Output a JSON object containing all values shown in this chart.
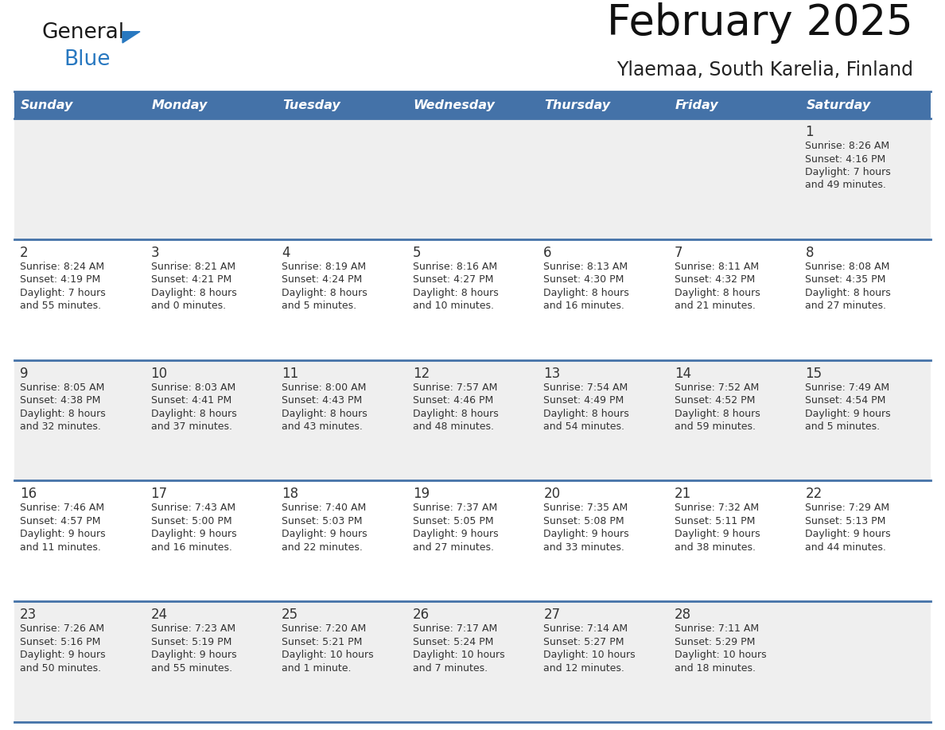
{
  "title": "February 2025",
  "subtitle": "Ylaemaa, South Karelia, Finland",
  "header_color": "#4472a8",
  "header_text_color": "#ffffff",
  "cell_bg_odd": "#efefef",
  "cell_bg_even": "#ffffff",
  "day_names": [
    "Sunday",
    "Monday",
    "Tuesday",
    "Wednesday",
    "Thursday",
    "Friday",
    "Saturday"
  ],
  "border_color": "#4472a8",
  "text_color": "#333333",
  "num_color": "#333333",
  "days": [
    {
      "day": 1,
      "col": 6,
      "row": 0,
      "sunrise": "8:26 AM",
      "sunset": "4:16 PM",
      "daylight_h": "7 hours",
      "daylight_m": "and 49 minutes."
    },
    {
      "day": 2,
      "col": 0,
      "row": 1,
      "sunrise": "8:24 AM",
      "sunset": "4:19 PM",
      "daylight_h": "7 hours",
      "daylight_m": "and 55 minutes."
    },
    {
      "day": 3,
      "col": 1,
      "row": 1,
      "sunrise": "8:21 AM",
      "sunset": "4:21 PM",
      "daylight_h": "8 hours",
      "daylight_m": "and 0 minutes."
    },
    {
      "day": 4,
      "col": 2,
      "row": 1,
      "sunrise": "8:19 AM",
      "sunset": "4:24 PM",
      "daylight_h": "8 hours",
      "daylight_m": "and 5 minutes."
    },
    {
      "day": 5,
      "col": 3,
      "row": 1,
      "sunrise": "8:16 AM",
      "sunset": "4:27 PM",
      "daylight_h": "8 hours",
      "daylight_m": "and 10 minutes."
    },
    {
      "day": 6,
      "col": 4,
      "row": 1,
      "sunrise": "8:13 AM",
      "sunset": "4:30 PM",
      "daylight_h": "8 hours",
      "daylight_m": "and 16 minutes."
    },
    {
      "day": 7,
      "col": 5,
      "row": 1,
      "sunrise": "8:11 AM",
      "sunset": "4:32 PM",
      "daylight_h": "8 hours",
      "daylight_m": "and 21 minutes."
    },
    {
      "day": 8,
      "col": 6,
      "row": 1,
      "sunrise": "8:08 AM",
      "sunset": "4:35 PM",
      "daylight_h": "8 hours",
      "daylight_m": "and 27 minutes."
    },
    {
      "day": 9,
      "col": 0,
      "row": 2,
      "sunrise": "8:05 AM",
      "sunset": "4:38 PM",
      "daylight_h": "8 hours",
      "daylight_m": "and 32 minutes."
    },
    {
      "day": 10,
      "col": 1,
      "row": 2,
      "sunrise": "8:03 AM",
      "sunset": "4:41 PM",
      "daylight_h": "8 hours",
      "daylight_m": "and 37 minutes."
    },
    {
      "day": 11,
      "col": 2,
      "row": 2,
      "sunrise": "8:00 AM",
      "sunset": "4:43 PM",
      "daylight_h": "8 hours",
      "daylight_m": "and 43 minutes."
    },
    {
      "day": 12,
      "col": 3,
      "row": 2,
      "sunrise": "7:57 AM",
      "sunset": "4:46 PM",
      "daylight_h": "8 hours",
      "daylight_m": "and 48 minutes."
    },
    {
      "day": 13,
      "col": 4,
      "row": 2,
      "sunrise": "7:54 AM",
      "sunset": "4:49 PM",
      "daylight_h": "8 hours",
      "daylight_m": "and 54 minutes."
    },
    {
      "day": 14,
      "col": 5,
      "row": 2,
      "sunrise": "7:52 AM",
      "sunset": "4:52 PM",
      "daylight_h": "8 hours",
      "daylight_m": "and 59 minutes."
    },
    {
      "day": 15,
      "col": 6,
      "row": 2,
      "sunrise": "7:49 AM",
      "sunset": "4:54 PM",
      "daylight_h": "9 hours",
      "daylight_m": "and 5 minutes."
    },
    {
      "day": 16,
      "col": 0,
      "row": 3,
      "sunrise": "7:46 AM",
      "sunset": "4:57 PM",
      "daylight_h": "9 hours",
      "daylight_m": "and 11 minutes."
    },
    {
      "day": 17,
      "col": 1,
      "row": 3,
      "sunrise": "7:43 AM",
      "sunset": "5:00 PM",
      "daylight_h": "9 hours",
      "daylight_m": "and 16 minutes."
    },
    {
      "day": 18,
      "col": 2,
      "row": 3,
      "sunrise": "7:40 AM",
      "sunset": "5:03 PM",
      "daylight_h": "9 hours",
      "daylight_m": "and 22 minutes."
    },
    {
      "day": 19,
      "col": 3,
      "row": 3,
      "sunrise": "7:37 AM",
      "sunset": "5:05 PM",
      "daylight_h": "9 hours",
      "daylight_m": "and 27 minutes."
    },
    {
      "day": 20,
      "col": 4,
      "row": 3,
      "sunrise": "7:35 AM",
      "sunset": "5:08 PM",
      "daylight_h": "9 hours",
      "daylight_m": "and 33 minutes."
    },
    {
      "day": 21,
      "col": 5,
      "row": 3,
      "sunrise": "7:32 AM",
      "sunset": "5:11 PM",
      "daylight_h": "9 hours",
      "daylight_m": "and 38 minutes."
    },
    {
      "day": 22,
      "col": 6,
      "row": 3,
      "sunrise": "7:29 AM",
      "sunset": "5:13 PM",
      "daylight_h": "9 hours",
      "daylight_m": "and 44 minutes."
    },
    {
      "day": 23,
      "col": 0,
      "row": 4,
      "sunrise": "7:26 AM",
      "sunset": "5:16 PM",
      "daylight_h": "9 hours",
      "daylight_m": "and 50 minutes."
    },
    {
      "day": 24,
      "col": 1,
      "row": 4,
      "sunrise": "7:23 AM",
      "sunset": "5:19 PM",
      "daylight_h": "9 hours",
      "daylight_m": "and 55 minutes."
    },
    {
      "day": 25,
      "col": 2,
      "row": 4,
      "sunrise": "7:20 AM",
      "sunset": "5:21 PM",
      "daylight_h": "10 hours",
      "daylight_m": "and 1 minute."
    },
    {
      "day": 26,
      "col": 3,
      "row": 4,
      "sunrise": "7:17 AM",
      "sunset": "5:24 PM",
      "daylight_h": "10 hours",
      "daylight_m": "and 7 minutes."
    },
    {
      "day": 27,
      "col": 4,
      "row": 4,
      "sunrise": "7:14 AM",
      "sunset": "5:27 PM",
      "daylight_h": "10 hours",
      "daylight_m": "and 12 minutes."
    },
    {
      "day": 28,
      "col": 5,
      "row": 4,
      "sunrise": "7:11 AM",
      "sunset": "5:29 PM",
      "daylight_h": "10 hours",
      "daylight_m": "and 18 minutes."
    }
  ],
  "logo_general_color": "#1a1a1a",
  "logo_blue_color": "#2878c0",
  "logo_triangle_color": "#2878c0",
  "fig_width": 11.88,
  "fig_height": 9.18
}
